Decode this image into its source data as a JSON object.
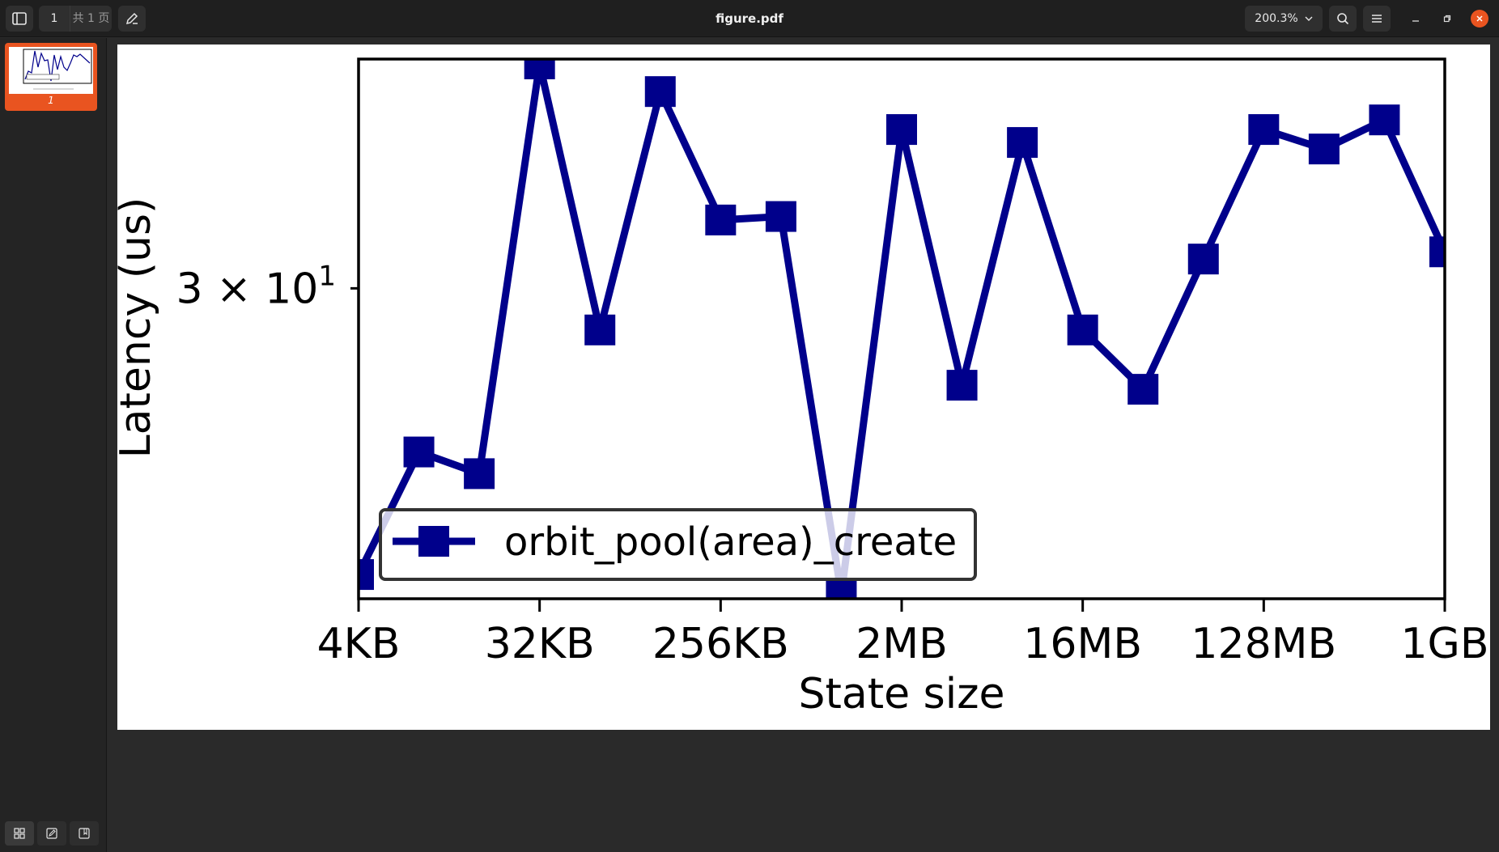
{
  "titlebar": {
    "filename": "figure.pdf",
    "page_current": "1",
    "page_total": "共 1 页",
    "zoom": "200.3%",
    "icons": [
      "sidebar-toggle-icon",
      "annotate-pen-icon",
      "search-icon",
      "menu-icon",
      "minimize-icon",
      "maximize-icon",
      "close-icon"
    ]
  },
  "sidebar": {
    "thumbnails": [
      {
        "label": "1"
      }
    ],
    "bottom_tools": [
      "thumbnails-grid-icon",
      "annotations-icon",
      "bookmarks-icon"
    ]
  },
  "chart_data": {
    "type": "line",
    "xlabel": "State size",
    "ylabel": "Latency (us)",
    "yscale": "log",
    "ytick_labels": [
      {
        "value": 30,
        "label": "3 × 10^1"
      }
    ],
    "xtick_labels": [
      "4KB",
      "32KB",
      "256KB",
      "2MB",
      "16MB",
      "128MB",
      "1GB"
    ],
    "xtick_positions": [
      0,
      3,
      6,
      9,
      12,
      15,
      18
    ],
    "legend": {
      "placement": "lower-left"
    },
    "series": [
      {
        "name": "orbit_pool(area)_create",
        "color": "#00008b",
        "marker": "square",
        "x": [
          0,
          1,
          2,
          3,
          4,
          5,
          6,
          7,
          8,
          9,
          10,
          11,
          12,
          13,
          14,
          15,
          16,
          17,
          18
        ],
        "y": [
          23.2,
          25.9,
          25.4,
          36.7,
          28.9,
          35.8,
          31.9,
          32.0,
          22.8,
          34.6,
          27.5,
          34.2,
          28.9,
          27.4,
          30.8,
          34.6,
          34.0,
          34.9,
          31.0
        ]
      }
    ],
    "ylim": [
      22.8,
      36.7
    ],
    "xlim": [
      0,
      18
    ]
  }
}
